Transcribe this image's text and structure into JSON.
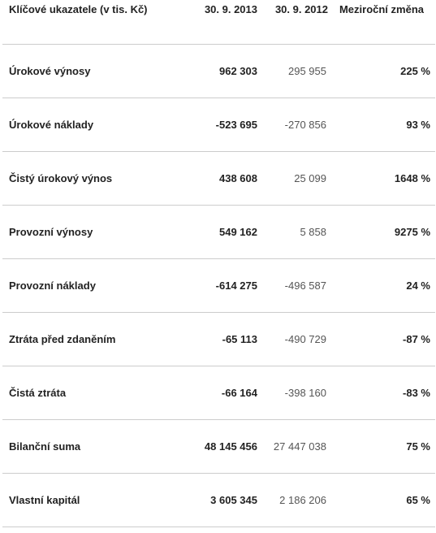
{
  "table": {
    "headers": [
      "Klíčové ukazatele (v tis. Kč)",
      "30. 9. 2013",
      "30. 9. 2012",
      "Meziroční změna"
    ],
    "rows": [
      {
        "label": "Úrokové výnosy",
        "v2013": "962 303",
        "v2012": "295 955",
        "change": "225 %"
      },
      {
        "label": "Úrokové náklady",
        "v2013": "-523 695",
        "v2012": "-270 856",
        "change": "93 %"
      },
      {
        "label": "Čistý úrokový výnos",
        "v2013": "438 608",
        "v2012": "25 099",
        "change": "1648 %"
      },
      {
        "label": "Provozní výnosy",
        "v2013": "549 162",
        "v2012": "5 858",
        "change": "9275 %"
      },
      {
        "label": "Provozní náklady",
        "v2013": "-614 275",
        "v2012": "-496 587",
        "change": "24 %"
      },
      {
        "label": "Ztráta před zdaněním",
        "v2013": "-65 113",
        "v2012": "-490 729",
        "change": "-87 %"
      },
      {
        "label": "Čistá ztráta",
        "v2013": "-66 164",
        "v2012": "-398 160",
        "change": "-83 %"
      },
      {
        "label": "Bilanční suma",
        "v2013": "48 145 456",
        "v2012": "27 447 038",
        "change": "75 %"
      },
      {
        "label": "Vlastní kapitál",
        "v2013": "3 605 345",
        "v2012": "2 186 206",
        "change": "65 %"
      }
    ]
  }
}
